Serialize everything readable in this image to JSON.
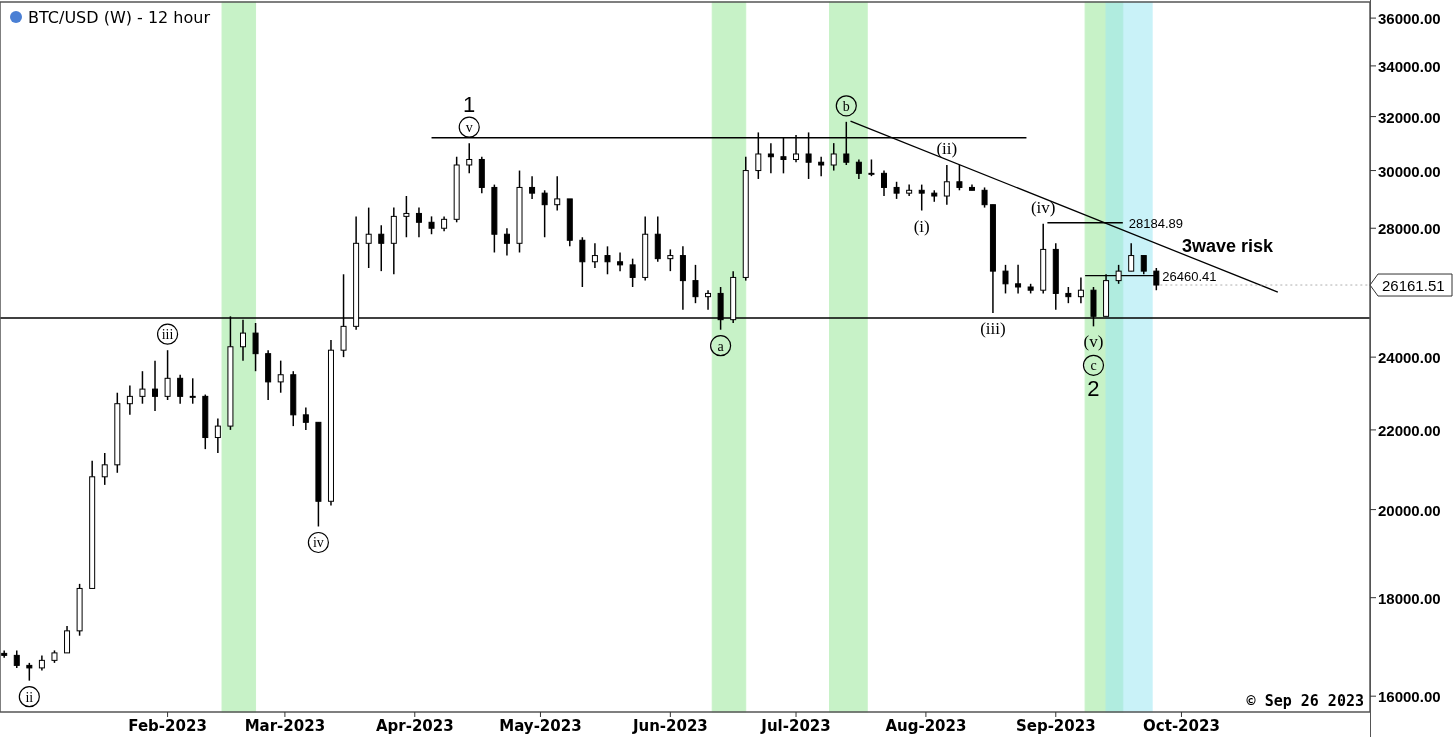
{
  "chart_data": {
    "type": "candlestick",
    "title": "BTC/USD (W) - 12 hour",
    "log": true,
    "grid": false,
    "color": "#000000",
    "xlim": [
      "2022-12-23",
      "2023-11-15"
    ],
    "xticks": [
      {
        "value": "2023-02-01",
        "label": "Feb-2023"
      },
      {
        "value": "2023-03-01",
        "label": "Mar-2023"
      },
      {
        "value": "2023-04-01",
        "label": "Apr-2023"
      },
      {
        "value": "2023-05-01",
        "label": "May-2023"
      },
      {
        "value": "2023-06-01",
        "label": "Jun-2023"
      },
      {
        "value": "2023-07-01",
        "label": "Jul-2023"
      },
      {
        "value": "2023-08-01",
        "label": "Aug-2023"
      },
      {
        "value": "2023-09-01",
        "label": "Sep-2023"
      },
      {
        "value": "2023-10-01",
        "label": "Oct-2023"
      }
    ],
    "ylim": [
      15700,
      36700
    ],
    "yticks": [
      {
        "value": 16000,
        "label": "16000.00"
      },
      {
        "value": 18000,
        "label": "18000.00"
      },
      {
        "value": 20000,
        "label": "20000.00"
      },
      {
        "value": 22000,
        "label": "22000.00"
      },
      {
        "value": 24000,
        "label": "24000.00"
      },
      {
        "value": 28000,
        "label": "28000.00"
      },
      {
        "value": 30000,
        "label": "30000.00"
      },
      {
        "value": 32000,
        "label": "32000.00"
      },
      {
        "value": 34000,
        "label": "34000.00"
      },
      {
        "value": 36000,
        "label": "36000.00"
      }
    ],
    "x": [
      "2022-12-24",
      "2022-12-27",
      "2022-12-30",
      "2023-01-02",
      "2023-01-05",
      "2023-01-08",
      "2023-01-11",
      "2023-01-14",
      "2023-01-17",
      "2023-01-20",
      "2023-01-23",
      "2023-01-26",
      "2023-01-29",
      "2023-02-01",
      "2023-02-04",
      "2023-02-07",
      "2023-02-10",
      "2023-02-13",
      "2023-02-16",
      "2023-02-19",
      "2023-02-22",
      "2023-02-25",
      "2023-02-28",
      "2023-03-03",
      "2023-03-06",
      "2023-03-09",
      "2023-03-12",
      "2023-03-15",
      "2023-03-18",
      "2023-03-21",
      "2023-03-24",
      "2023-03-27",
      "2023-03-30",
      "2023-04-02",
      "2023-04-05",
      "2023-04-08",
      "2023-04-11",
      "2023-04-14",
      "2023-04-17",
      "2023-04-20",
      "2023-04-23",
      "2023-04-26",
      "2023-04-29",
      "2023-05-02",
      "2023-05-05",
      "2023-05-08",
      "2023-05-11",
      "2023-05-14",
      "2023-05-17",
      "2023-05-20",
      "2023-05-23",
      "2023-05-26",
      "2023-05-29",
      "2023-06-01",
      "2023-06-04",
      "2023-06-07",
      "2023-06-10",
      "2023-06-13",
      "2023-06-16",
      "2023-06-19",
      "2023-06-22",
      "2023-06-25",
      "2023-06-28",
      "2023-07-01",
      "2023-07-04",
      "2023-07-07",
      "2023-07-10",
      "2023-07-13",
      "2023-07-16",
      "2023-07-19",
      "2023-07-22",
      "2023-07-25",
      "2023-07-28",
      "2023-07-31",
      "2023-08-03",
      "2023-08-06",
      "2023-08-09",
      "2023-08-12",
      "2023-08-15",
      "2023-08-17",
      "2023-08-20",
      "2023-08-23",
      "2023-08-26",
      "2023-08-29",
      "2023-09-01",
      "2023-09-04",
      "2023-09-07",
      "2023-09-10",
      "2023-09-13",
      "2023-09-16",
      "2023-09-19",
      "2023-09-22",
      "2023-09-25"
    ],
    "ohlc": [
      [
        16840,
        16900,
        16750,
        16800
      ],
      [
        16800,
        16900,
        16550,
        16600
      ],
      [
        16600,
        16650,
        16300,
        16550
      ],
      [
        16550,
        16800,
        16500,
        16700
      ],
      [
        16700,
        16900,
        16650,
        16850
      ],
      [
        16850,
        17400,
        16850,
        17300
      ],
      [
        17300,
        18300,
        17200,
        18200
      ],
      [
        18200,
        21200,
        18200,
        20800
      ],
      [
        20800,
        21400,
        20600,
        21100
      ],
      [
        21100,
        23000,
        20900,
        22700
      ],
      [
        22700,
        23200,
        22400,
        22900
      ],
      [
        22900,
        23600,
        22700,
        23100
      ],
      [
        23100,
        23900,
        22500,
        22900
      ],
      [
        22900,
        24200,
        22800,
        23400
      ],
      [
        23400,
        23500,
        22700,
        22900
      ],
      [
        22900,
        23400,
        22700,
        22900
      ],
      [
        22900,
        22950,
        21500,
        21800
      ],
      [
        21800,
        22300,
        21400,
        22100
      ],
      [
        22100,
        25200,
        22000,
        24300
      ],
      [
        24300,
        25100,
        23900,
        24700
      ],
      [
        24700,
        25000,
        23600,
        24100
      ],
      [
        24100,
        24200,
        22800,
        23300
      ],
      [
        23300,
        23900,
        23000,
        23500
      ],
      [
        23500,
        23600,
        22100,
        22400
      ],
      [
        22400,
        22600,
        22000,
        22200
      ],
      [
        22200,
        22200,
        19600,
        20200
      ],
      [
        20200,
        24500,
        20100,
        24200
      ],
      [
        24200,
        26500,
        24000,
        24900
      ],
      [
        24900,
        28400,
        24800,
        27500
      ],
      [
        27500,
        28700,
        26700,
        27800
      ],
      [
        27800,
        28100,
        26600,
        27500
      ],
      [
        27500,
        28700,
        26500,
        28400
      ],
      [
        28400,
        29100,
        27700,
        28500
      ],
      [
        28500,
        28700,
        27700,
        28200
      ],
      [
        28200,
        28400,
        27800,
        28000
      ],
      [
        28000,
        28400,
        27900,
        28300
      ],
      [
        28300,
        30500,
        28200,
        30200
      ],
      [
        30200,
        31000,
        29900,
        30400
      ],
      [
        30400,
        30500,
        29200,
        29400
      ],
      [
        29400,
        29500,
        27200,
        27800
      ],
      [
        27800,
        28000,
        27100,
        27500
      ],
      [
        27500,
        30000,
        27200,
        29400
      ],
      [
        29400,
        29800,
        29000,
        29200
      ],
      [
        29200,
        29300,
        27700,
        28800
      ],
      [
        28800,
        29800,
        28600,
        29000
      ],
      [
        29000,
        29000,
        27400,
        27600
      ],
      [
        27600,
        27700,
        26100,
        26900
      ],
      [
        26900,
        27500,
        26700,
        27100
      ],
      [
        27100,
        27400,
        26500,
        26900
      ],
      [
        26900,
        27200,
        26600,
        26800
      ],
      [
        26800,
        27000,
        26100,
        26400
      ],
      [
        26400,
        28400,
        26300,
        27800
      ],
      [
        27800,
        28400,
        26900,
        27000
      ],
      [
        27000,
        27300,
        26600,
        27100
      ],
      [
        27100,
        27400,
        25400,
        26300
      ],
      [
        26300,
        26800,
        25600,
        25800
      ],
      [
        25800,
        26000,
        25400,
        25900
      ],
      [
        25900,
        26100,
        24800,
        25100
      ],
      [
        25100,
        26600,
        25000,
        26400
      ],
      [
        26400,
        30500,
        26300,
        30000
      ],
      [
        30000,
        31400,
        29700,
        30600
      ],
      [
        30600,
        31000,
        29900,
        30500
      ],
      [
        30500,
        31200,
        29900,
        30400
      ],
      [
        30400,
        31300,
        30300,
        30600
      ],
      [
        30600,
        31400,
        29700,
        30300
      ],
      [
        30300,
        30500,
        29800,
        30200
      ],
      [
        30200,
        31000,
        30000,
        30600
      ],
      [
        30600,
        31800,
        30200,
        30300
      ],
      [
        30300,
        30400,
        29700,
        29900
      ],
      [
        29900,
        30400,
        29800,
        29900
      ],
      [
        29900,
        30000,
        29100,
        29400
      ],
      [
        29400,
        29600,
        29000,
        29200
      ],
      [
        29200,
        29500,
        29100,
        29300
      ],
      [
        29300,
        29500,
        28600,
        29200
      ],
      [
        29200,
        29300,
        28900,
        29100
      ],
      [
        29100,
        30200,
        28800,
        29600
      ],
      [
        29600,
        30200,
        29300,
        29400
      ],
      [
        29400,
        29500,
        29300,
        29300
      ],
      [
        29300,
        29400,
        28700,
        28800
      ],
      [
        28800,
        28800,
        25300,
        26600
      ],
      [
        26600,
        26800,
        25900,
        26200
      ],
      [
        26200,
        26800,
        25900,
        26100
      ],
      [
        26100,
        26200,
        25900,
        26000
      ],
      [
        26000,
        28150,
        25900,
        27300
      ],
      [
        27300,
        27500,
        25400,
        25900
      ],
      [
        25900,
        26100,
        25600,
        25800
      ],
      [
        25800,
        26400,
        25600,
        26000
      ],
      [
        26000,
        26100,
        24900,
        25200
      ],
      [
        25200,
        26500,
        25200,
        26300
      ],
      [
        26300,
        26800,
        26200,
        26600
      ],
      [
        26600,
        27500,
        26600,
        27100
      ],
      [
        27100,
        27100,
        26500,
        26600
      ],
      [
        26600,
        26700,
        26000,
        26161.51
      ]
    ],
    "series": [
      {
        "type": "line",
        "color": "#000000",
        "x": [
          "2023-04-05",
          "2023-08-25"
        ],
        "values": [
          31200,
          31200
        ]
      },
      {
        "type": "line",
        "color": "#000000",
        "x": [
          "2023-07-14",
          "2023-10-24"
        ],
        "values": [
          31830,
          25940
        ]
      },
      {
        "type": "line",
        "color": "#000000",
        "x": [
          "2023-08-30",
          "2023-09-17"
        ],
        "values": [
          28184.89,
          28184.89
        ]
      },
      {
        "type": "line",
        "color": "#000000",
        "x": [
          "2023-09-08",
          "2023-09-25"
        ],
        "values": [
          26460.41,
          26460.41
        ]
      }
    ],
    "ref_lines": [
      {
        "axis": "y",
        "value": 25150,
        "color": "#000000"
      }
    ],
    "bands": [
      {
        "axis": "x",
        "from": "2023-02-14",
        "to": "2023-02-22",
        "color": "#9be89b"
      },
      {
        "axis": "x",
        "from": "2023-06-11",
        "to": "2023-06-19",
        "color": "#9be89b"
      },
      {
        "axis": "x",
        "from": "2023-07-09",
        "to": "2023-07-18",
        "color": "#9be89b"
      },
      {
        "axis": "x",
        "from": "2023-09-08",
        "to": "2023-09-17",
        "color": "#9be89b"
      },
      {
        "axis": "x",
        "from": "2023-09-13",
        "to": "2023-09-24",
        "color": "#9ee8f4"
      }
    ],
    "annotations": [
      {
        "text": "v",
        "x": "2023-04-14",
        "y": 31000
      },
      {
        "text": "1",
        "x": "2023-04-14",
        "y": 31000
      },
      {
        "text": "iii",
        "x": "2023-02-01",
        "y": 24200
      },
      {
        "text": "ii",
        "x": "2022-12-30",
        "y": 16300
      },
      {
        "text": "iv",
        "x": "2023-03-09",
        "y": 19600
      },
      {
        "text": "a",
        "x": "2023-06-13",
        "y": 24800
      },
      {
        "text": "b",
        "x": "2023-07-13",
        "y": 31800
      },
      {
        "text": "(v)",
        "x": "2023-09-10",
        "y": 24900
      },
      {
        "text": "c",
        "x": "2023-09-10",
        "y": 24900
      },
      {
        "text": "2",
        "x": "2023-09-10",
        "y": 24900
      },
      {
        "text": "(i)",
        "x": "2023-07-31",
        "y": 28600
      },
      {
        "text": "(ii)",
        "x": "2023-08-06",
        "y": 30200
      },
      {
        "text": "(iii)",
        "x": "2023-08-17",
        "y": 25300
      },
      {
        "text": "(iv)",
        "x": "2023-08-29",
        "y": 28150
      },
      {
        "text": "3wave risk",
        "x": "2023-10-12",
        "y": 26580
      },
      {
        "text": "28184.89",
        "x": "2023-09-17",
        "y": 28184.89
      },
      {
        "text": "26460.41",
        "x": "2023-09-25",
        "y": 26460.41
      },
      {
        "text": "26161.51",
        "x": "2023-09-25",
        "y": 26161.51
      },
      "© Sep 26 2023"
    ]
  }
}
